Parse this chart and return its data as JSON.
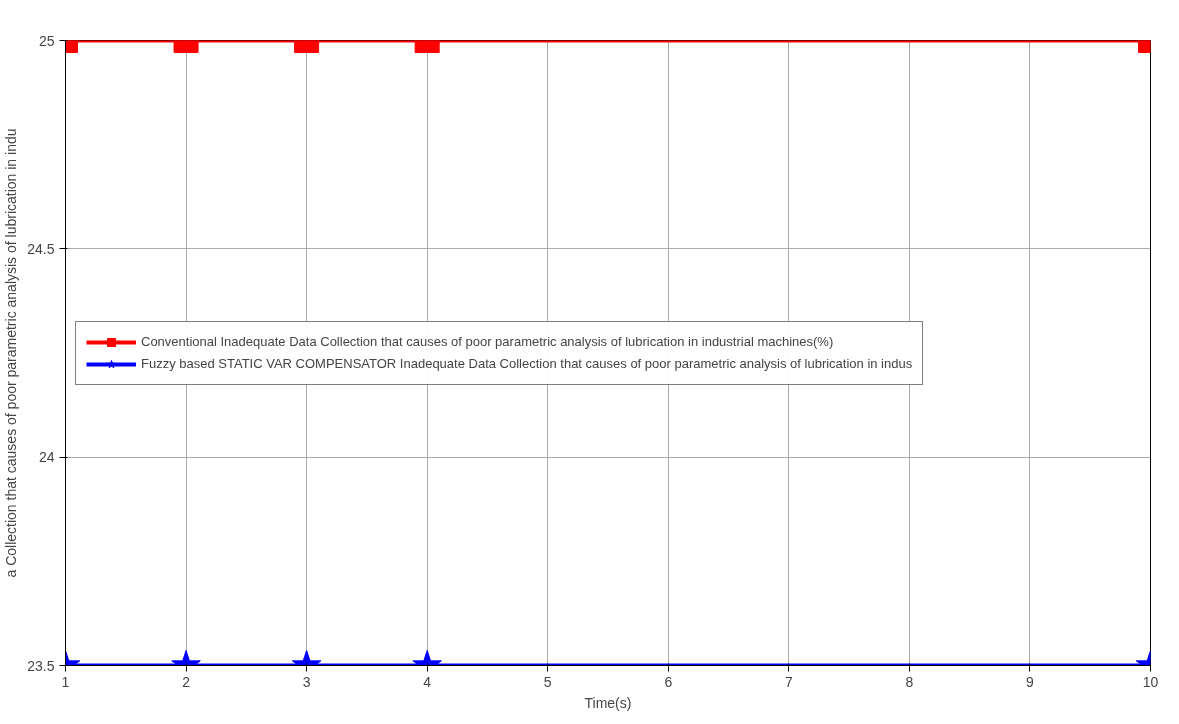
{
  "chart_data": {
    "type": "line",
    "xlabel": "Time(s)",
    "ylabel": "a Collection that causes of poor parametric analysis of lubrication in indu",
    "xlim": [
      1,
      10
    ],
    "xticks": [
      1,
      2,
      3,
      4,
      5,
      6,
      7,
      8,
      9,
      10
    ],
    "ylim": [
      23.5,
      25
    ],
    "yticks": [
      23.5,
      24,
      24.5,
      25
    ],
    "grid": true,
    "legend": "left",
    "line_style": "solid",
    "x": [
      1,
      2,
      3,
      4,
      10
    ],
    "series": [
      {
        "name": "Conventional Inadequate Data Collection that causes of poor parametric analysis of lubrication in industrial machines(%)",
        "color": "#ff0000",
        "marker": "square",
        "values": [
          25,
          25,
          25,
          25,
          25
        ]
      },
      {
        "name": "Fuzzy based STATIC VAR COMPENSATOR Inadequate Data Collection that causes of poor parametric analysis of lubrication in indus",
        "color": "#0000ff",
        "marker": "star",
        "values": [
          23.5,
          23.5,
          23.5,
          23.5,
          23.5
        ]
      }
    ]
  }
}
